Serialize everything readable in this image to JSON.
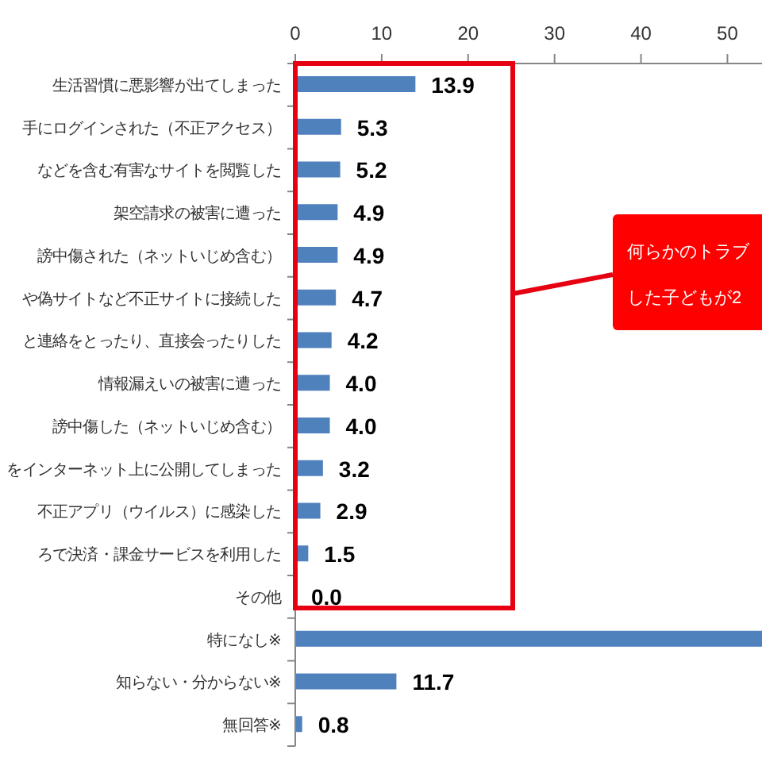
{
  "chart_data": {
    "type": "bar",
    "orientation": "horizontal",
    "categories": [
      "生活習慣に悪影響が出てしまった",
      "手にログインされた（不正アクセス）",
      "などを含む有害なサイトを閲覧した",
      "架空請求の被害に遭った",
      "謗中傷された（ネットいじめ含む）",
      "や偽サイトなど不正サイトに接続した",
      "と連絡をとったり、直接会ったりした",
      "情報漏えいの被害に遭った",
      "謗中傷した（ネットいじめ含む）",
      "をインターネット上に公開してしまった",
      "不正アプリ（ウイルス）に感染した",
      "ろで決済・課金サービスを利用した",
      "その他",
      "特になし※",
      "知らない・分からない※",
      "無回答※"
    ],
    "values": [
      13.9,
      5.3,
      5.2,
      4.9,
      4.9,
      4.7,
      4.2,
      4.0,
      4.0,
      3.2,
      2.9,
      1.5,
      0.0,
      54,
      11.7,
      0.8
    ],
    "value_labels": [
      "13.9",
      "5.3",
      "5.2",
      "4.9",
      "4.9",
      "4.7",
      "4.2",
      "4.0",
      "4.0",
      "3.2",
      "2.9",
      "1.5",
      "0.0",
      null,
      "11.7",
      "0.8"
    ],
    "color": "#4f81bd",
    "xlim": [
      0,
      54
    ],
    "xticks": [
      0,
      10,
      20,
      30,
      40,
      50
    ],
    "annotations": [
      "何らかのトラブした子どもが2"
    ]
  }
}
